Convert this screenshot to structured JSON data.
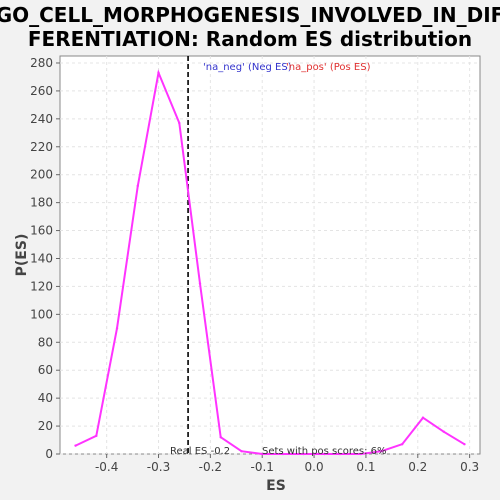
{
  "chart_data": {
    "type": "line",
    "title_line1": "GO_CELL_MORPHOGENESIS_INVOLVED_IN_DIF",
    "title_line2": "FERENTIATION: Random ES distribution",
    "xlabel": "ES",
    "ylabel": "P(ES)",
    "xlim": [
      -0.49,
      0.32
    ],
    "ylim": [
      0,
      285
    ],
    "x_ticks": [
      -0.4,
      -0.3,
      -0.2,
      -0.1,
      0.0,
      0.1,
      0.2,
      0.3
    ],
    "x_tick_labels": [
      "-0.4",
      "-0.3",
      "-0.2",
      "-0.1",
      "0.0",
      "0.1",
      "0.2",
      "0.3"
    ],
    "y_ticks": [
      0,
      20,
      40,
      60,
      80,
      100,
      120,
      140,
      160,
      180,
      200,
      220,
      240,
      260,
      280
    ],
    "y_tick_labels": [
      "0",
      "20",
      "40",
      "60",
      "80",
      "100",
      "120",
      "140",
      "160",
      "180",
      "200",
      "220",
      "240",
      "260",
      "280"
    ],
    "grid": true,
    "series": [
      {
        "color": "#ff33ff",
        "x": [
          -0.46,
          -0.42,
          -0.38,
          -0.34,
          -0.3,
          -0.26,
          -0.22,
          -0.18,
          -0.14,
          -0.1,
          -0.06,
          -0.02,
          0.02,
          0.05,
          0.09,
          0.13,
          0.17,
          0.21,
          0.25,
          0.29
        ],
        "y": [
          6,
          13,
          90,
          192,
          273,
          237,
          122,
          12,
          2,
          0,
          0,
          0,
          0,
          0,
          0,
          2,
          7,
          26,
          16,
          7
        ]
      }
    ],
    "real_es": -0.243,
    "legend": {
      "neg_label": "'na_neg' (Neg ES)",
      "pos_label": "'na_pos' (Pos ES)",
      "placement": "top-center"
    },
    "annotations": {
      "real_es": "Real ES -0.2",
      "pos_scores": "Sets with pos scores: 6%"
    }
  }
}
